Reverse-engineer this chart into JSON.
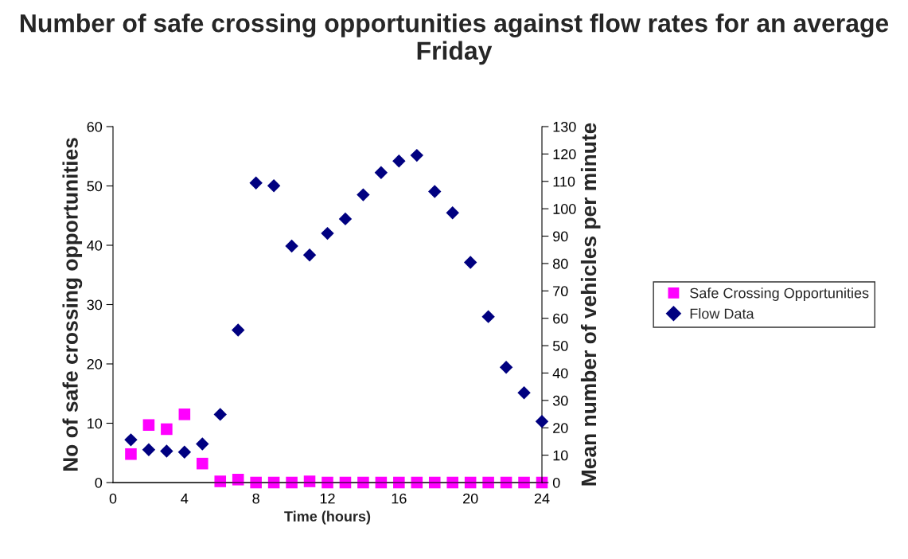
{
  "chart_data": {
    "type": "scatter",
    "title": "Number of safe crossing opportunities against flow rates for an average Friday",
    "xlabel": "Time (hours)",
    "ylabel": "No of safe crossing opportunities",
    "y2label": "Mean number of vehicles per minute",
    "x": [
      1,
      2,
      3,
      4,
      5,
      6,
      7,
      8,
      9,
      10,
      11,
      12,
      13,
      14,
      15,
      16,
      17,
      18,
      19,
      20,
      21,
      22,
      23,
      24
    ],
    "series": [
      {
        "name": "Safe Crossing Opportunities",
        "color": "#ff00ff",
        "marker": "square",
        "values": [
          4.8,
          9.7,
          9.0,
          11.5,
          3.2,
          0.2,
          0.5,
          0,
          0,
          0,
          0.2,
          0,
          0,
          0,
          0,
          0,
          0,
          0,
          0,
          0,
          0,
          0,
          0,
          0
        ]
      },
      {
        "name": "Flow Data",
        "color": "#000080",
        "marker": "diamond",
        "axis": "y2",
        "values": [
          15.6,
          12.0,
          11.5,
          11.1,
          14.1,
          24.9,
          55.7,
          109.4,
          108.4,
          86.4,
          83.1,
          91.0,
          96.3,
          105.1,
          113.2,
          117.4,
          119.5,
          106.3,
          98.5,
          80.4,
          60.6,
          42.1,
          32.8,
          22.3
        ]
      }
    ],
    "xlim": [
      0,
      24
    ],
    "xticks": [
      0,
      4,
      8,
      12,
      16,
      20,
      24
    ],
    "ylim": [
      0,
      60
    ],
    "yticks": [
      0,
      10,
      20,
      30,
      40,
      50,
      60
    ],
    "y2lim": [
      0,
      130
    ],
    "y2ticks": [
      0,
      10,
      20,
      30,
      40,
      50,
      60,
      70,
      80,
      90,
      100,
      110,
      120,
      130
    ],
    "grid": false,
    "legend": "right"
  }
}
